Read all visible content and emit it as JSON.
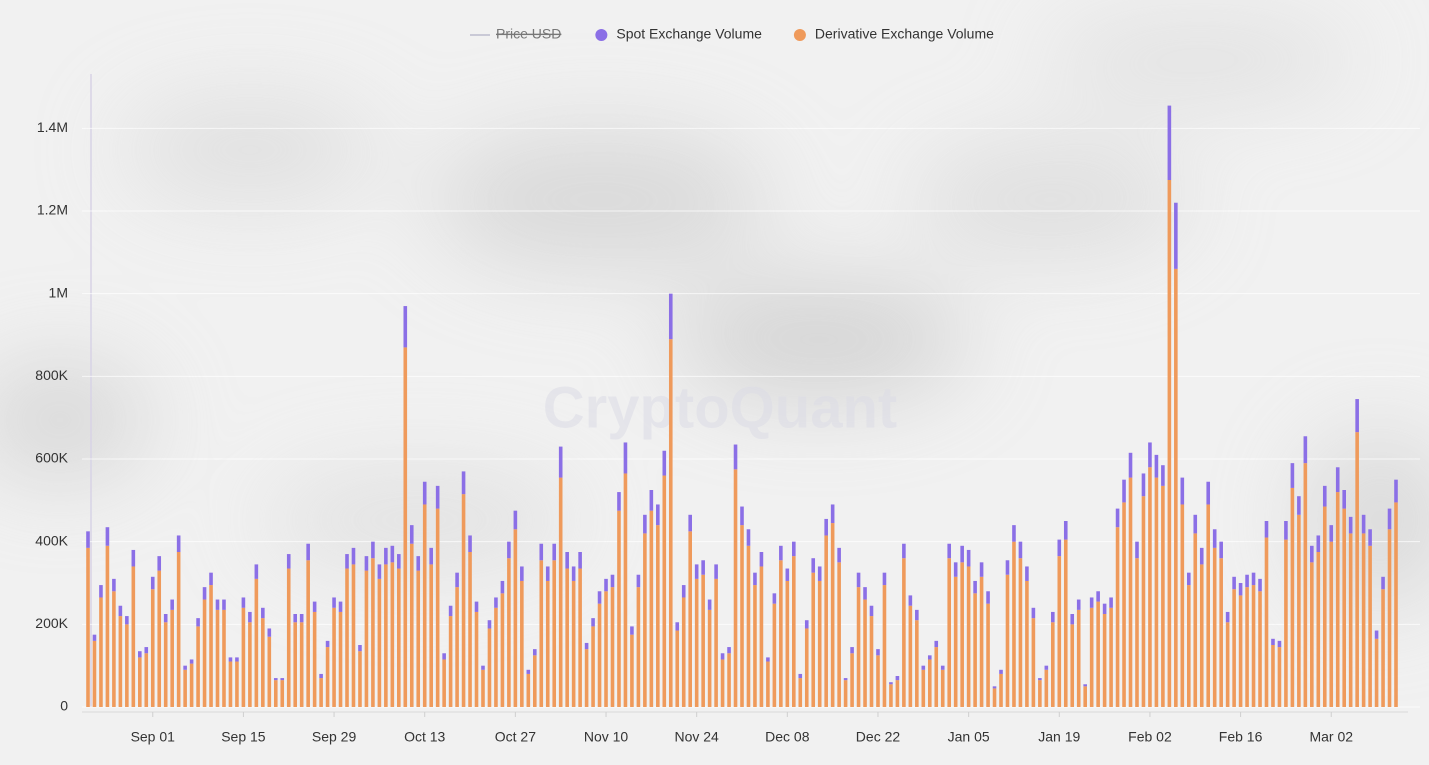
{
  "chart_data": {
    "type": "bar",
    "stacked": true,
    "watermark": "CryptoQuant",
    "categories": [
      null,
      null,
      null,
      null,
      null,
      null,
      null,
      null,
      null,
      null,
      "Sep 01",
      null,
      null,
      null,
      null,
      null,
      null,
      null,
      null,
      null,
      null,
      null,
      null,
      null,
      "Sep 15",
      null,
      null,
      null,
      null,
      null,
      null,
      null,
      null,
      null,
      null,
      null,
      null,
      null,
      "Sep 29",
      null,
      null,
      null,
      null,
      null,
      null,
      null,
      null,
      null,
      null,
      null,
      null,
      null,
      "Oct 13",
      null,
      null,
      null,
      null,
      null,
      null,
      null,
      null,
      null,
      null,
      null,
      null,
      null,
      "Oct 27",
      null,
      null,
      null,
      null,
      null,
      null,
      null,
      null,
      null,
      null,
      null,
      null,
      null,
      "Nov 10",
      null,
      null,
      null,
      null,
      null,
      null,
      null,
      null,
      null,
      null,
      null,
      null,
      null,
      "Nov 24",
      null,
      null,
      null,
      null,
      null,
      null,
      null,
      null,
      null,
      null,
      null,
      null,
      null,
      "Dec 08",
      null,
      null,
      null,
      null,
      null,
      null,
      null,
      null,
      null,
      null,
      null,
      null,
      null,
      "Dec 22",
      null,
      null,
      null,
      null,
      null,
      null,
      null,
      null,
      null,
      null,
      null,
      null,
      null,
      "Jan 05",
      null,
      null,
      null,
      null,
      null,
      null,
      null,
      null,
      null,
      null,
      null,
      null,
      null,
      "Jan 19",
      null,
      null,
      null,
      null,
      null,
      null,
      null,
      null,
      null,
      null,
      null,
      null,
      null,
      "Feb 02",
      null,
      null,
      null,
      null,
      null,
      null,
      null,
      null,
      null,
      null,
      null,
      null,
      null,
      "Feb 16",
      null,
      null,
      null,
      null,
      null,
      null,
      null,
      null,
      null,
      null,
      null,
      null,
      null,
      "Mar 02",
      null,
      null,
      null,
      null,
      null,
      null,
      null,
      null,
      null,
      null
    ],
    "series": [
      {
        "name": "Price USD",
        "color": "#c9c9d6",
        "hidden": true
      },
      {
        "name": "Spot Exchange Volume",
        "color": "#8b6fe6",
        "values": [
          40000,
          15000,
          30000,
          45000,
          30000,
          25000,
          20000,
          40000,
          15000,
          15000,
          30000,
          35000,
          20000,
          25000,
          40000,
          10000,
          10000,
          20000,
          30000,
          30000,
          25000,
          25000,
          10000,
          10000,
          25000,
          25000,
          35000,
          25000,
          20000,
          5000,
          5000,
          35000,
          20000,
          20000,
          40000,
          25000,
          10000,
          15000,
          25000,
          25000,
          35000,
          40000,
          15000,
          35000,
          40000,
          35000,
          40000,
          40000,
          35000,
          100000,
          45000,
          35000,
          55000,
          40000,
          55000,
          15000,
          25000,
          35000,
          55000,
          40000,
          25000,
          10000,
          20000,
          25000,
          30000,
          40000,
          45000,
          35000,
          10000,
          15000,
          40000,
          35000,
          40000,
          75000,
          40000,
          35000,
          40000,
          15000,
          20000,
          30000,
          30000,
          30000,
          45000,
          75000,
          20000,
          30000,
          45000,
          50000,
          50000,
          60000,
          110000,
          20000,
          30000,
          40000,
          35000,
          35000,
          25000,
          35000,
          15000,
          15000,
          60000,
          45000,
          40000,
          30000,
          35000,
          10000,
          25000,
          35000,
          30000,
          35000,
          10000,
          20000,
          35000,
          35000,
          40000,
          45000,
          35000,
          5000,
          15000,
          35000,
          30000,
          25000,
          15000,
          30000,
          5000,
          10000,
          35000,
          25000,
          25000,
          10000,
          10000,
          15000,
          10000,
          35000,
          35000,
          40000,
          40000,
          30000,
          35000,
          30000,
          5000,
          10000,
          35000,
          40000,
          40000,
          35000,
          25000,
          5000,
          10000,
          25000,
          40000,
          45000,
          25000,
          25000,
          5000,
          25000,
          25000,
          25000,
          25000,
          45000,
          55000,
          60000,
          40000,
          55000,
          60000,
          55000,
          50000,
          180000,
          160000,
          65000,
          30000,
          45000,
          40000,
          55000,
          45000,
          40000,
          25000,
          30000,
          30000,
          30000,
          30000,
          30000,
          40000,
          15000,
          15000,
          45000,
          60000,
          45000,
          65000,
          40000,
          40000,
          50000,
          40000,
          60000,
          45000,
          40000,
          80000,
          45000,
          40000,
          20000,
          30000,
          50000,
          55000
        ]
      },
      {
        "name": "Derivative Exchange Volume",
        "color": "#ef9a5b",
        "values": [
          385000,
          160000,
          265000,
          390000,
          280000,
          220000,
          200000,
          340000,
          120000,
          130000,
          285000,
          330000,
          205000,
          235000,
          375000,
          90000,
          105000,
          195000,
          260000,
          295000,
          235000,
          235000,
          110000,
          110000,
          240000,
          205000,
          310000,
          215000,
          170000,
          65000,
          65000,
          335000,
          205000,
          205000,
          355000,
          230000,
          70000,
          145000,
          240000,
          230000,
          335000,
          345000,
          135000,
          330000,
          360000,
          310000,
          345000,
          350000,
          335000,
          870000,
          395000,
          330000,
          490000,
          345000,
          480000,
          115000,
          220000,
          290000,
          515000,
          375000,
          230000,
          90000,
          190000,
          240000,
          275000,
          360000,
          430000,
          305000,
          80000,
          125000,
          355000,
          305000,
          355000,
          555000,
          335000,
          305000,
          335000,
          140000,
          195000,
          250000,
          280000,
          290000,
          475000,
          565000,
          175000,
          290000,
          420000,
          475000,
          440000,
          560000,
          890000,
          185000,
          265000,
          425000,
          310000,
          320000,
          235000,
          310000,
          115000,
          130000,
          575000,
          440000,
          390000,
          295000,
          340000,
          110000,
          250000,
          355000,
          305000,
          365000,
          70000,
          190000,
          325000,
          305000,
          415000,
          445000,
          350000,
          65000,
          130000,
          290000,
          260000,
          220000,
          125000,
          295000,
          55000,
          65000,
          360000,
          245000,
          210000,
          90000,
          115000,
          145000,
          90000,
          360000,
          315000,
          350000,
          340000,
          275000,
          315000,
          250000,
          45000,
          80000,
          320000,
          400000,
          360000,
          305000,
          215000,
          65000,
          90000,
          205000,
          365000,
          405000,
          200000,
          235000,
          50000,
          240000,
          255000,
          225000,
          240000,
          435000,
          495000,
          555000,
          360000,
          510000,
          580000,
          555000,
          535000,
          1275000,
          1060000,
          490000,
          295000,
          420000,
          345000,
          490000,
          385000,
          360000,
          205000,
          285000,
          270000,
          290000,
          295000,
          280000,
          410000,
          150000,
          145000,
          405000,
          530000,
          465000,
          590000,
          350000,
          375000,
          485000,
          400000,
          520000,
          480000,
          420000,
          665000,
          420000,
          390000,
          165000,
          285000,
          430000,
          495000
        ]
      }
    ],
    "ylim": [
      0,
      1500000
    ],
    "yticks": [
      0,
      {
        "value": 200000,
        "label": "200K"
      },
      {
        "value": 400000,
        "label": "400K"
      },
      {
        "value": 600000,
        "label": "600K"
      },
      {
        "value": 800000,
        "label": "800K"
      },
      {
        "value": 1000000,
        "label": "1M"
      },
      {
        "value": 1200000,
        "label": "1.2M"
      },
      {
        "value": 1400000,
        "label": "1.4M"
      }
    ],
    "grid": true
  }
}
